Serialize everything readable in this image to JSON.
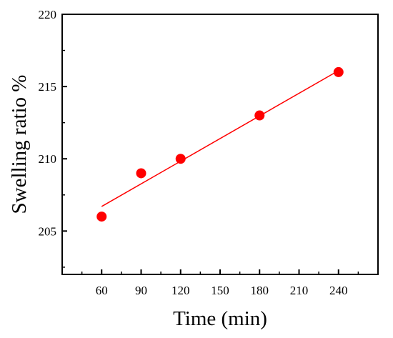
{
  "chart_data": {
    "type": "scatter",
    "title": "",
    "xlabel": "Time (min)",
    "ylabel": "Swelling ratio %",
    "xlim": [
      30,
      270
    ],
    "ylim": [
      202,
      220
    ],
    "xticks": [
      60,
      90,
      120,
      150,
      180,
      210,
      240
    ],
    "yticks": [
      205,
      210,
      215,
      220
    ],
    "grid": false,
    "legend": "none",
    "series": [
      {
        "x": [
          60,
          90,
          120,
          180,
          240
        ],
        "y": [
          206,
          209,
          210,
          213,
          216
        ],
        "color": "#ff0000",
        "marker": "circle"
      }
    ],
    "fit_line": {
      "x": [
        60,
        240
      ],
      "y": [
        206.7,
        216.1
      ],
      "color": "#ff0000"
    }
  }
}
